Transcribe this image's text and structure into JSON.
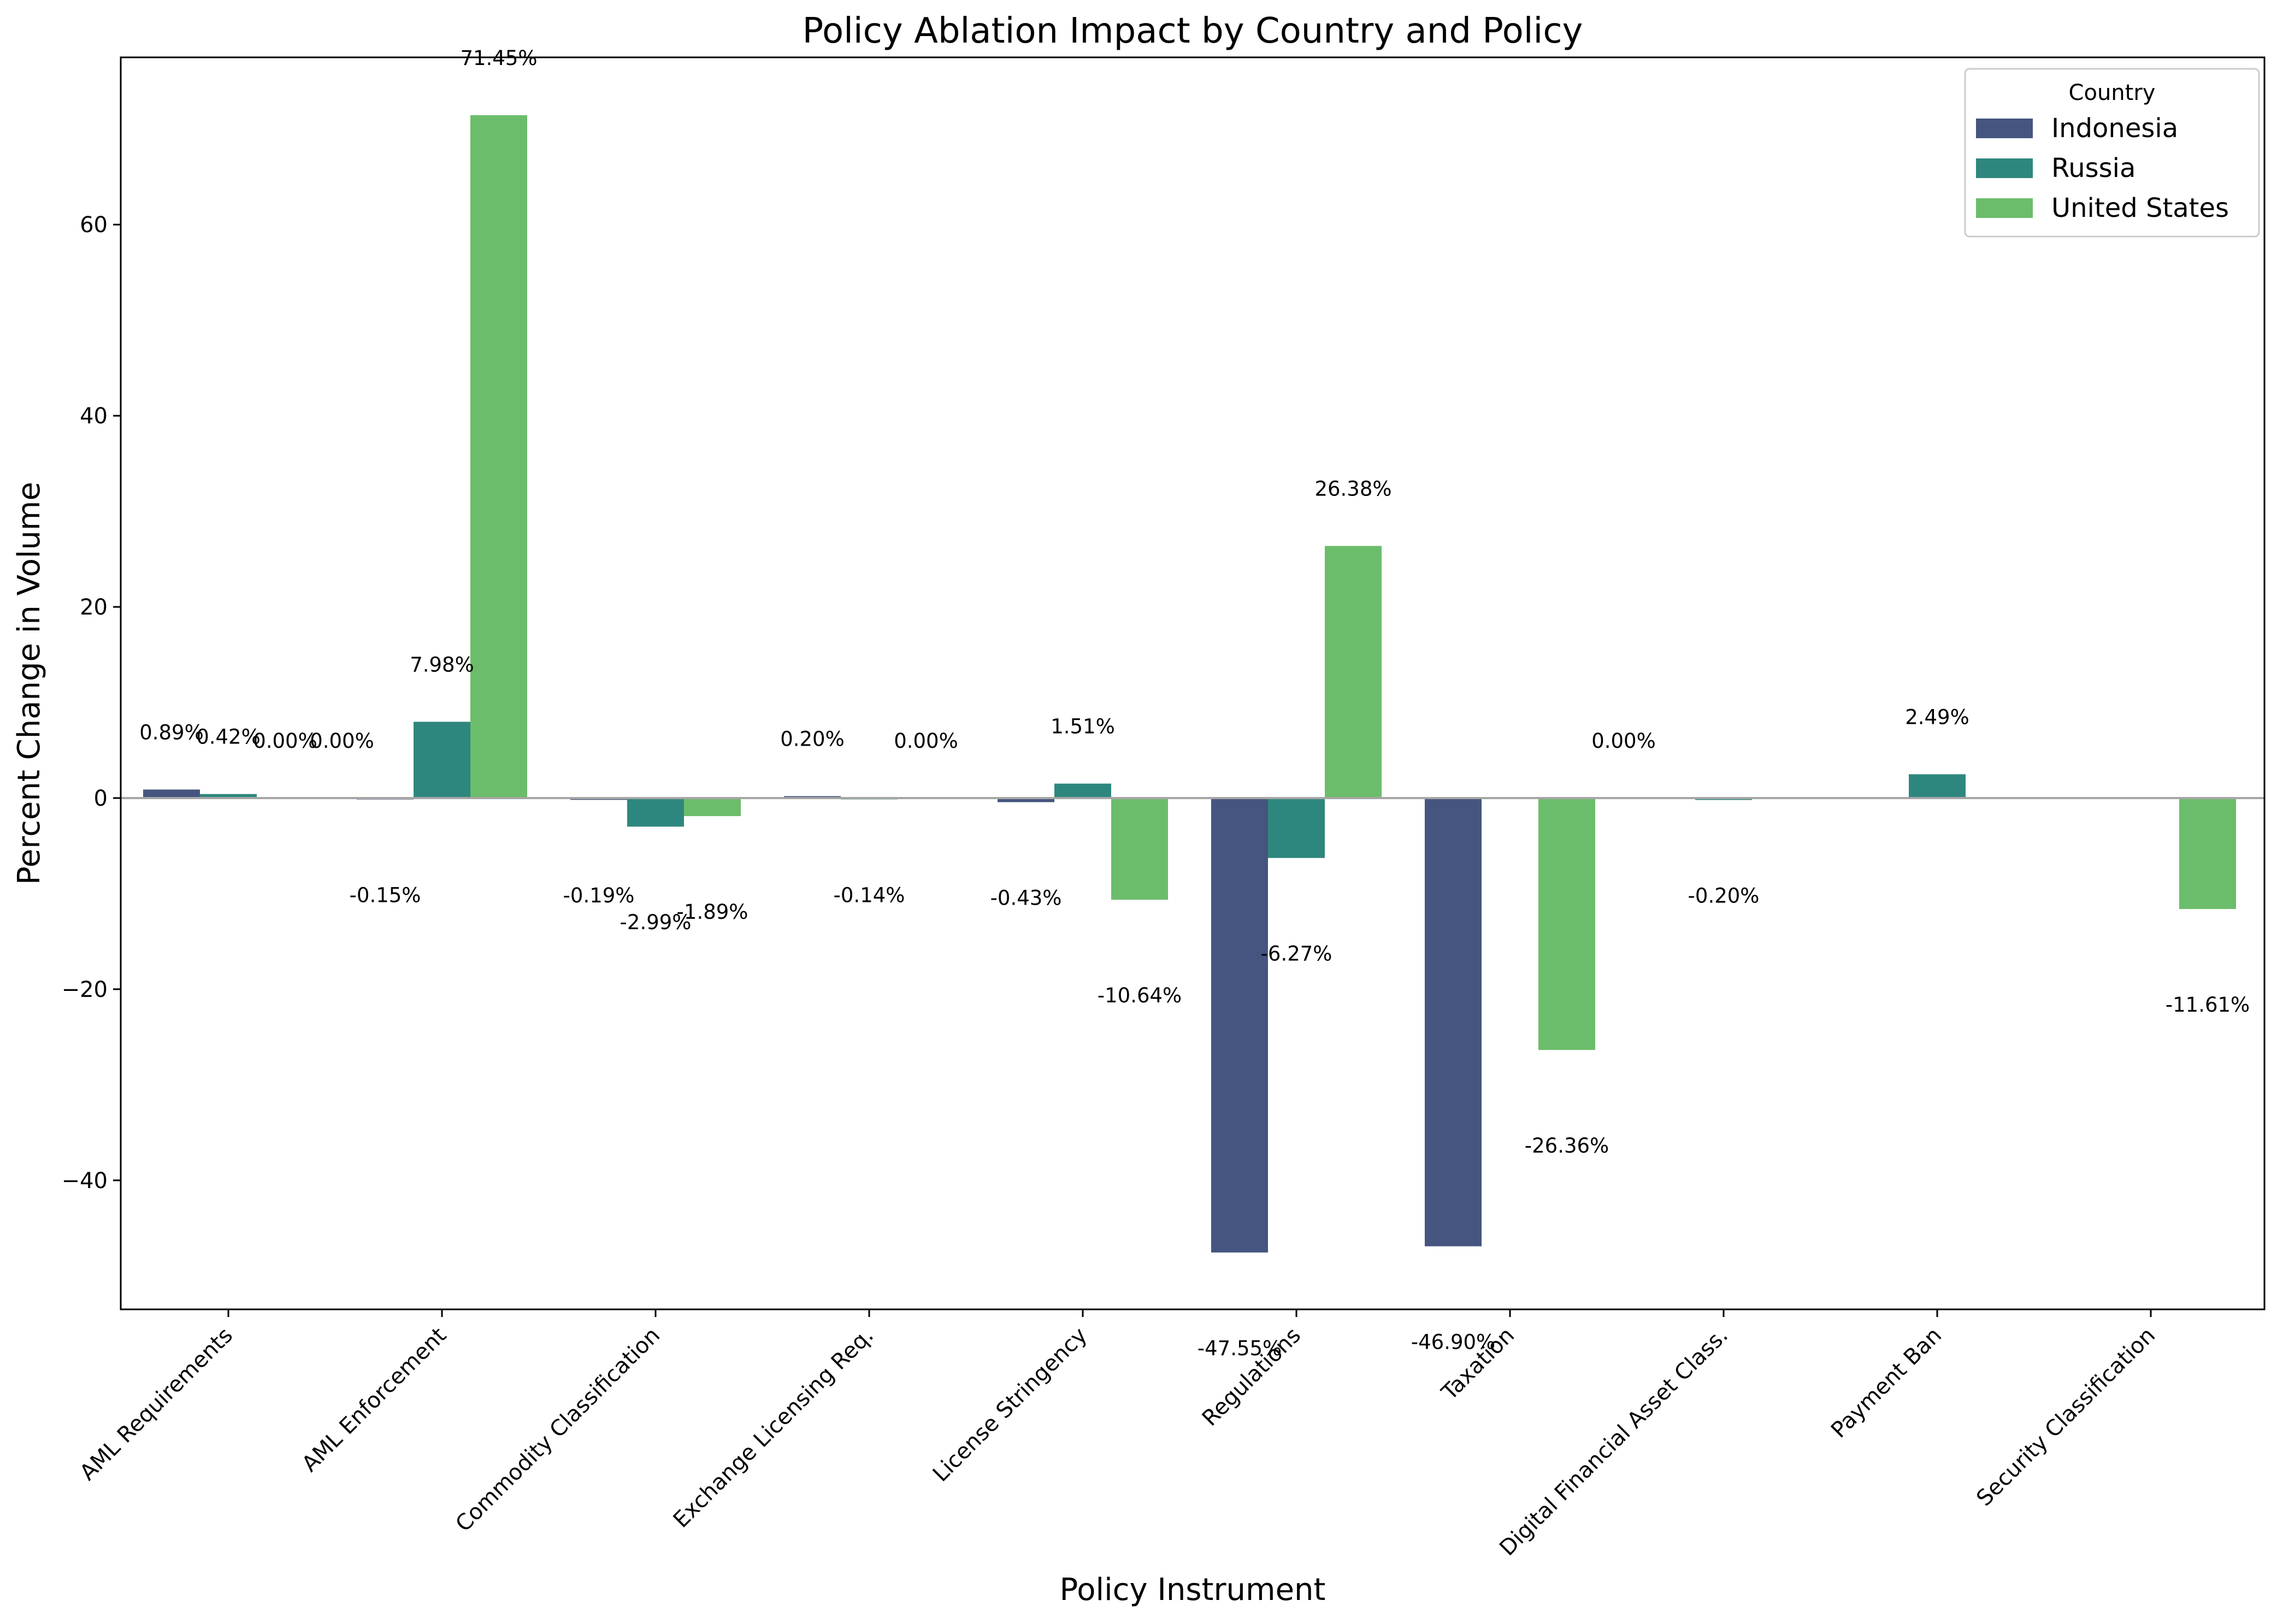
{
  "chart_data": {
    "type": "bar",
    "title": "Policy Ablation Impact by Country and Policy",
    "xlabel": "Policy Instrument",
    "ylabel": "Percent Change in Volume",
    "ylim": [
      -53.5,
      77.5
    ],
    "yticks": [
      -40,
      -20,
      0,
      20,
      40,
      60
    ],
    "ytick_labels": [
      "−40",
      "−20",
      "0",
      "20",
      "40",
      "60"
    ],
    "grid": false,
    "legend": {
      "title": "Country",
      "position": "top-right"
    },
    "colors": {
      "Indonesia": "#45557f",
      "Russia": "#2e877e",
      "United States": "#6cbd6b",
      "zero_line": "#a6a6a6"
    },
    "categories": [
      "AML Requirements",
      "AML Enforcement",
      "Commodity Classification",
      "Exchange Licensing Req.",
      "License Stringency",
      "Regulations",
      "Taxation",
      "Digital Financial Asset Class.",
      "Payment Ban",
      "Security Classification"
    ],
    "series": [
      {
        "name": "Indonesia",
        "values": [
          0.89,
          -0.15,
          -0.19,
          0.2,
          -0.43,
          -47.55,
          -46.9,
          null,
          null,
          null
        ],
        "labels": [
          "0.89%",
          "-0.15%",
          "-0.19%",
          "0.20%",
          "-0.43%",
          "-47.55%",
          "-46.90%",
          null,
          null,
          null
        ]
      },
      {
        "name": "Russia",
        "values": [
          0.42,
          7.98,
          -2.99,
          -0.14,
          1.51,
          -6.27,
          null,
          -0.2,
          2.49,
          null
        ],
        "labels": [
          "0.42%",
          "7.98%",
          "-2.99%",
          "-0.14%",
          "1.51%",
          "-6.27%",
          null,
          "-0.20%",
          "2.49%",
          null
        ]
      },
      {
        "name": "United States",
        "values": [
          0.0,
          71.45,
          -1.89,
          0.0,
          -10.64,
          26.38,
          -26.36,
          null,
          null,
          -11.61
        ],
        "labels": [
          "0.00%",
          "71.45%",
          "-1.89%",
          "0.00%",
          "-10.64%",
          "26.38%",
          "-26.36%",
          null,
          null,
          "-11.61%"
        ]
      }
    ],
    "extra_labels": [
      {
        "category": "AML Requirements",
        "text": "0.00%"
      },
      {
        "category": "Taxation",
        "text": "0.00%"
      }
    ]
  }
}
